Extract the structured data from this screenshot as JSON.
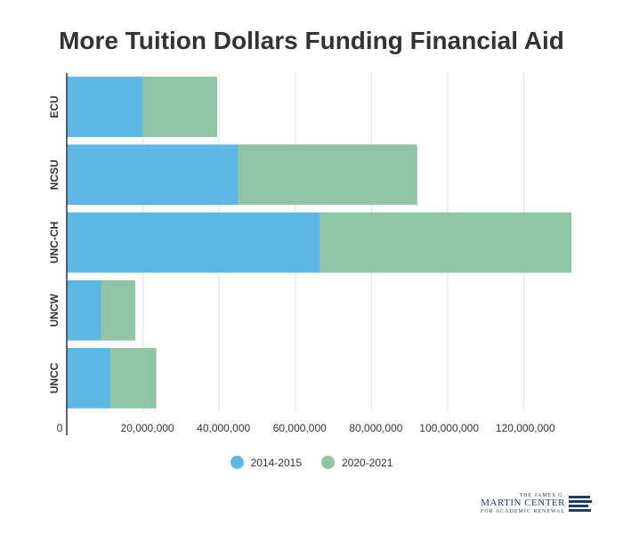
{
  "title": "More Tuition Dollars Funding Financial Aid",
  "colors": {
    "series_2014_2015": "#5db7e4",
    "series_2020_2021": "#8fc4a5",
    "text": "#333333",
    "logo": "#1f3a6d"
  },
  "chart_data": {
    "type": "bar",
    "orientation": "horizontal",
    "stacked": true,
    "title": "More Tuition Dollars Funding Financial Aid",
    "categories": [
      "ECU",
      "NCSU",
      "UNC-CH",
      "UNCW",
      "UNCC"
    ],
    "series": [
      {
        "name": "2014-2015",
        "values": [
          20000000,
          45000000,
          66500000,
          9000000,
          11500000
        ]
      },
      {
        "name": "2020-2021",
        "values": [
          19500000,
          47000000,
          66000000,
          9000000,
          12000000
        ]
      }
    ],
    "xlim": [
      0,
      132000000
    ],
    "xticks": [
      {
        "value": 0,
        "label": "0"
      },
      {
        "value": 20000000,
        "label": "20,000,000"
      },
      {
        "value": 40000000,
        "label": "40,000,000"
      },
      {
        "value": 60000000,
        "label": "60,000,000"
      },
      {
        "value": 80000000,
        "label": "80,000,000"
      },
      {
        "value": 100000000,
        "label": "100,000,000"
      },
      {
        "value": 120000000,
        "label": "120,000,000"
      }
    ],
    "grid": true,
    "legend_position": "bottom"
  },
  "logo": {
    "line1": "THE JAMES G.",
    "line2": "MARTIN CENTER",
    "line3": "FOR ACADEMIC RENEWAL"
  }
}
